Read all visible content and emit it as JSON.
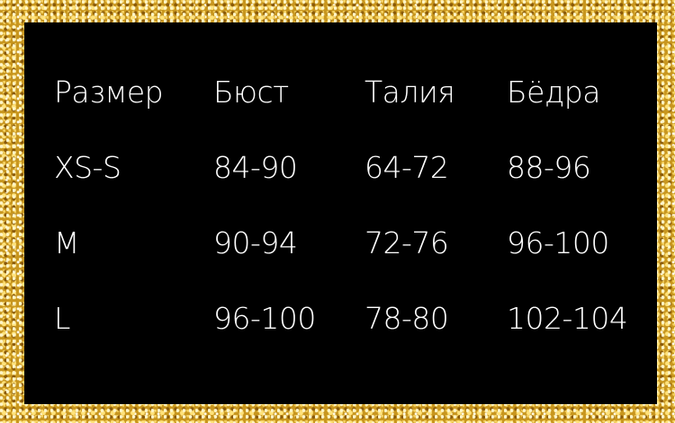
{
  "table": {
    "headers": [
      "Размер",
      "Бюст",
      "Талия",
      "Бёдра"
    ],
    "rows": [
      [
        "XS-S",
        "84-90",
        "64-72",
        "88-96"
      ],
      [
        "M",
        "90-94",
        "72-76",
        "96-100"
      ],
      [
        "L",
        "96-100",
        "78-80",
        "102-104"
      ]
    ]
  },
  "colors": {
    "panel": "#000000",
    "text": "#ffffff",
    "border": "gold glitter"
  }
}
